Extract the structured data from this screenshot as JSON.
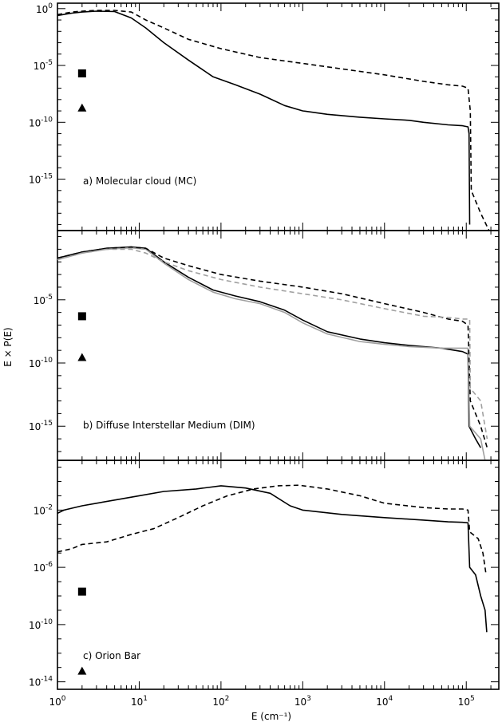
{
  "figure": {
    "xlabel": "E (cm⁻¹)",
    "ylabel": "E × P(E)"
  },
  "chart_data": [
    {
      "type": "line",
      "panel": "a",
      "annotation": "a) Molecular cloud (MC)",
      "xscale": "log",
      "yscale": "log",
      "xlim": [
        1,
        250000
      ],
      "ylim": [
        3e-20,
        3
      ],
      "yticks": [
        {
          "value": 1,
          "label": "10",
          "exp": "0"
        },
        {
          "value": 1e-05,
          "label": "10",
          "exp": "-5"
        },
        {
          "value": 1e-10,
          "label": "10",
          "exp": "-10"
        },
        {
          "value": 1e-15,
          "label": "10",
          "exp": "-15"
        }
      ],
      "series": [
        {
          "style": "solid",
          "color": "#000000",
          "points": [
            [
              1.0,
              0.25
            ],
            [
              1.5,
              0.4
            ],
            [
              2,
              0.5
            ],
            [
              3,
              0.6
            ],
            [
              5,
              0.55
            ],
            [
              8,
              0.15
            ],
            [
              12,
              0.02
            ],
            [
              20,
              0.001
            ],
            [
              40,
              3e-05
            ],
            [
              80,
              1e-06
            ],
            [
              150,
              2e-07
            ],
            [
              300,
              3e-08
            ],
            [
              600,
              3e-09
            ],
            [
              1000,
              1e-09
            ],
            [
              2000,
              5e-10
            ],
            [
              5000,
              2.8e-10
            ],
            [
              10000,
              2e-10
            ],
            [
              20000,
              1.5e-10
            ],
            [
              30000,
              1e-10
            ],
            [
              60000,
              6e-11
            ],
            [
              90000,
              5e-11
            ],
            [
              105000,
              4e-11
            ],
            [
              108000,
              1e-11
            ],
            [
              110000,
              1e-19
            ]
          ]
        },
        {
          "style": "dashed",
          "color": "#000000",
          "points": [
            [
              1.0,
              0.3
            ],
            [
              1.5,
              0.5
            ],
            [
              2,
              0.6
            ],
            [
              3,
              0.7
            ],
            [
              5,
              0.7
            ],
            [
              8,
              0.5
            ],
            [
              12,
              0.1
            ],
            [
              20,
              0.02
            ],
            [
              40,
              0.002
            ],
            [
              100,
              0.0003
            ],
            [
              300,
              5e-05
            ],
            [
              1000,
              1.5e-05
            ],
            [
              3000,
              5e-06
            ],
            [
              10000,
              1.5e-06
            ],
            [
              30000,
              4e-07
            ],
            [
              60000,
              2e-07
            ],
            [
              90000,
              1.5e-07
            ],
            [
              105000,
              1e-07
            ],
            [
              112000,
              1e-09
            ],
            [
              115000,
              1e-16
            ],
            [
              150000,
              1e-18
            ],
            [
              190000,
              2e-20
            ]
          ]
        }
      ],
      "markers": [
        {
          "shape": "square",
          "x": 2,
          "y": 2e-06
        },
        {
          "shape": "triangle",
          "x": 2,
          "y": 2e-09
        }
      ]
    },
    {
      "type": "line",
      "panel": "b",
      "annotation": "b) Diffuse Interstellar Medium (DIM)",
      "xscale": "log",
      "yscale": "log",
      "xlim": [
        1,
        250000
      ],
      "ylim": [
        2e-18,
        3
      ],
      "yticks": [
        {
          "value": 1e-05,
          "label": "10",
          "exp": "-5"
        },
        {
          "value": 1e-10,
          "label": "10",
          "exp": "-10"
        },
        {
          "value": 1e-15,
          "label": "10",
          "exp": "-15"
        }
      ],
      "series": [
        {
          "style": "solid",
          "color": "#000000",
          "points": [
            [
              1.0,
              0.02
            ],
            [
              2,
              0.06
            ],
            [
              4,
              0.12
            ],
            [
              8,
              0.15
            ],
            [
              12,
              0.12
            ],
            [
              20,
              0.01
            ],
            [
              40,
              0.0006
            ],
            [
              80,
              6e-05
            ],
            [
              150,
              2e-05
            ],
            [
              300,
              7e-06
            ],
            [
              600,
              1.5e-06
            ],
            [
              1000,
              2.5e-07
            ],
            [
              2000,
              3e-08
            ],
            [
              5000,
              8e-09
            ],
            [
              10000,
              4e-09
            ],
            [
              20000,
              2.5e-09
            ],
            [
              50000,
              1.5e-09
            ],
            [
              90000,
              8e-10
            ],
            [
              105000,
              5e-10
            ],
            [
              108000,
              1e-15
            ],
            [
              130000,
              1e-16
            ],
            [
              150000,
              2e-17
            ]
          ]
        },
        {
          "style": "solid",
          "color": "#a0a0a0",
          "points": [
            [
              1.0,
              0.015
            ],
            [
              2,
              0.05
            ],
            [
              4,
              0.1
            ],
            [
              8,
              0.13
            ],
            [
              12,
              0.1
            ],
            [
              20,
              0.008
            ],
            [
              40,
              0.0004
            ],
            [
              80,
              4e-05
            ],
            [
              150,
              1.2e-05
            ],
            [
              300,
              5e-06
            ],
            [
              600,
              1e-06
            ],
            [
              1000,
              1.5e-07
            ],
            [
              2000,
              2e-08
            ],
            [
              5000,
              5e-09
            ],
            [
              10000,
              3e-09
            ],
            [
              20000,
              2e-09
            ],
            [
              50000,
              1.5e-09
            ],
            [
              90000,
              1.5e-09
            ],
            [
              105000,
              1.5e-09
            ],
            [
              110000,
              1e-15
            ],
            [
              150000,
              1e-16
            ],
            [
              170000,
              2e-18
            ]
          ]
        },
        {
          "style": "dashed",
          "color": "#000000",
          "points": [
            [
              1.0,
              0.02
            ],
            [
              2,
              0.06
            ],
            [
              4,
              0.12
            ],
            [
              8,
              0.15
            ],
            [
              12,
              0.12
            ],
            [
              20,
              0.02
            ],
            [
              40,
              0.005
            ],
            [
              100,
              0.001
            ],
            [
              300,
              0.0003
            ],
            [
              1000,
              0.0001
            ],
            [
              3000,
              3e-05
            ],
            [
              10000,
              5e-06
            ],
            [
              30000,
              1e-06
            ],
            [
              60000,
              3e-07
            ],
            [
              90000,
              2e-07
            ],
            [
              105000,
              1e-07
            ],
            [
              112000,
              1e-13
            ],
            [
              150000,
              1e-15
            ],
            [
              180000,
              2e-17
            ]
          ]
        },
        {
          "style": "dashed",
          "color": "#a0a0a0",
          "points": [
            [
              1.0,
              0.015
            ],
            [
              2,
              0.05
            ],
            [
              4,
              0.1
            ],
            [
              8,
              0.1
            ],
            [
              12,
              0.05
            ],
            [
              20,
              0.01
            ],
            [
              40,
              0.002
            ],
            [
              100,
              0.0004
            ],
            [
              300,
              0.0001
            ],
            [
              1000,
              3e-05
            ],
            [
              3000,
              1e-05
            ],
            [
              10000,
              2e-06
            ],
            [
              30000,
              5e-07
            ],
            [
              60000,
              4e-07
            ],
            [
              90000,
              3e-07
            ],
            [
              110000,
              3e-07
            ],
            [
              112000,
              1e-12
            ],
            [
              150000,
              1e-13
            ],
            [
              180000,
              1e-16
            ]
          ]
        }
      ],
      "markers": [
        {
          "shape": "square",
          "x": 2,
          "y": 5e-07
        },
        {
          "shape": "triangle",
          "x": 2,
          "y": 3e-10
        }
      ]
    },
    {
      "type": "line",
      "panel": "c",
      "annotation": "c) Orion Bar",
      "xscale": "log",
      "yscale": "log",
      "xlim": [
        1,
        250000
      ],
      "ylim": [
        3e-15,
        30
      ],
      "yticks": [
        {
          "value": 0.01,
          "label": "10",
          "exp": "-2"
        },
        {
          "value": 1e-06,
          "label": "10",
          "exp": "-6"
        },
        {
          "value": 1e-10,
          "label": "10",
          "exp": "-10"
        },
        {
          "value": 1e-14,
          "label": "10",
          "exp": "-14"
        }
      ],
      "xticks": [
        {
          "value": 1,
          "label": "10",
          "exp": "0"
        },
        {
          "value": 10,
          "label": "10",
          "exp": "1"
        },
        {
          "value": 100,
          "label": "10",
          "exp": "2"
        },
        {
          "value": 1000,
          "label": "10",
          "exp": "3"
        },
        {
          "value": 10000,
          "label": "10",
          "exp": "4"
        },
        {
          "value": 100000,
          "label": "10",
          "exp": "5"
        }
      ],
      "series": [
        {
          "style": "solid",
          "color": "#000000",
          "points": [
            [
              1.0,
              0.006
            ],
            [
              1.2,
              0.01
            ],
            [
              2,
              0.02
            ],
            [
              3,
              0.03
            ],
            [
              5,
              0.05
            ],
            [
              10,
              0.1
            ],
            [
              20,
              0.2
            ],
            [
              50,
              0.3
            ],
            [
              100,
              0.5
            ],
            [
              200,
              0.35
            ],
            [
              400,
              0.15
            ],
            [
              700,
              0.02
            ],
            [
              1000,
              0.01
            ],
            [
              3000,
              0.005
            ],
            [
              10000,
              0.003
            ],
            [
              30000,
              0.002
            ],
            [
              60000,
              0.0015
            ],
            [
              90000,
              0.0014
            ],
            [
              105000,
              0.0013
            ],
            [
              110000,
              1e-06
            ],
            [
              130000,
              3e-07
            ],
            [
              150000,
              1e-08
            ],
            [
              170000,
              1e-09
            ],
            [
              178000,
              3e-11
            ]
          ]
        },
        {
          "style": "dashed",
          "color": "#000000",
          "points": [
            [
              1.0,
              1.2e-05
            ],
            [
              1.5,
              2e-05
            ],
            [
              2,
              4e-05
            ],
            [
              4,
              6e-05
            ],
            [
              8,
              0.0002
            ],
            [
              15,
              0.0005
            ],
            [
              30,
              0.003
            ],
            [
              60,
              0.02
            ],
            [
              120,
              0.1
            ],
            [
              250,
              0.3
            ],
            [
              500,
              0.5
            ],
            [
              900,
              0.55
            ],
            [
              2000,
              0.3
            ],
            [
              5000,
              0.1
            ],
            [
              10000,
              0.03
            ],
            [
              30000,
              0.015
            ],
            [
              60000,
              0.012
            ],
            [
              90000,
              0.012
            ],
            [
              105000,
              0.01
            ],
            [
              110000,
              0.0003
            ],
            [
              140000,
              0.0001
            ],
            [
              160000,
              1e-05
            ],
            [
              175000,
              3e-07
            ]
          ]
        }
      ],
      "markers": [
        {
          "shape": "square",
          "x": 2,
          "y": 2e-08
        },
        {
          "shape": "triangle",
          "x": 2,
          "y": 6e-14
        }
      ]
    }
  ]
}
